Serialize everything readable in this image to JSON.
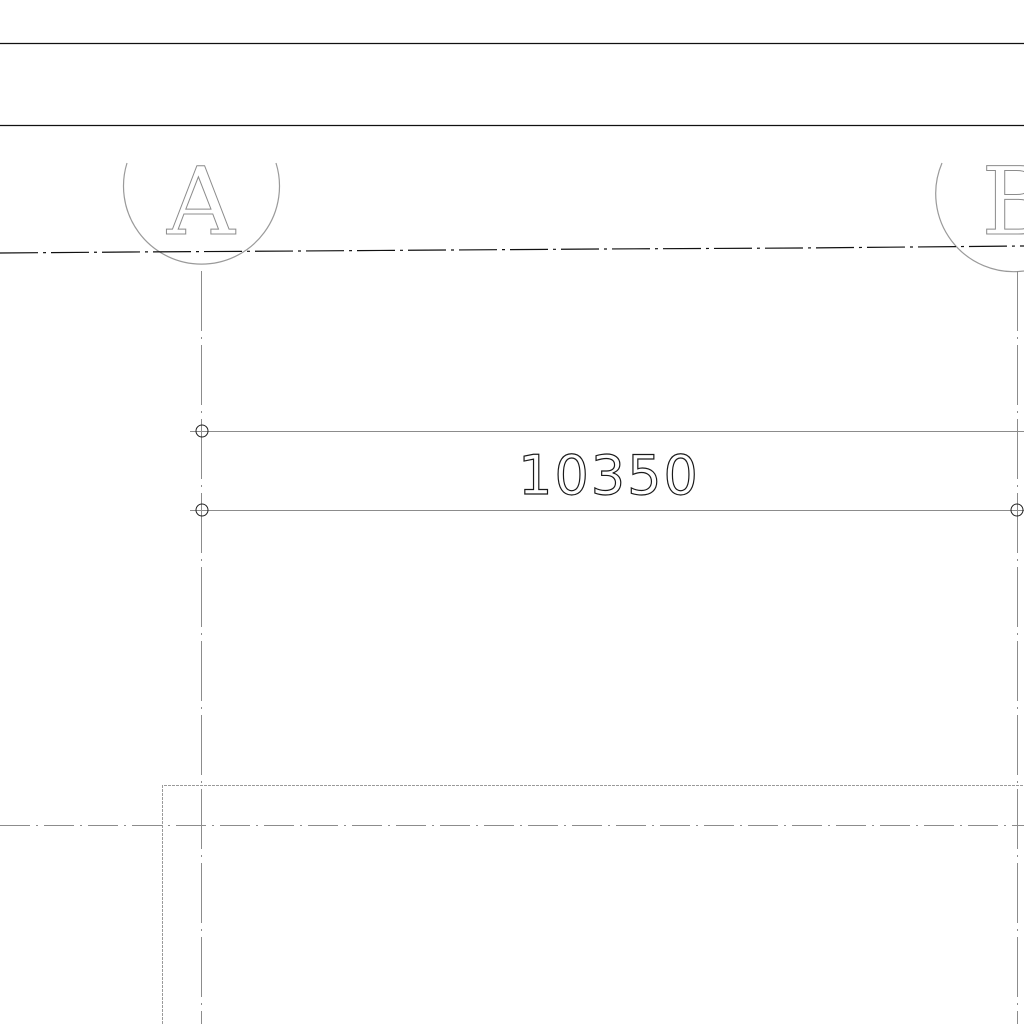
{
  "drawing": {
    "grid_bubbles": [
      {
        "label": "A"
      },
      {
        "label": "B"
      }
    ],
    "dimension": {
      "value": "10350"
    },
    "colors": {
      "background": "#ffffff",
      "border_line": "#111111",
      "grid_line": "#8c8c8c",
      "dimension_line": "#8c8c8c",
      "dimension_text": "#1a1a1a",
      "outline": "#9a9a9a"
    }
  }
}
